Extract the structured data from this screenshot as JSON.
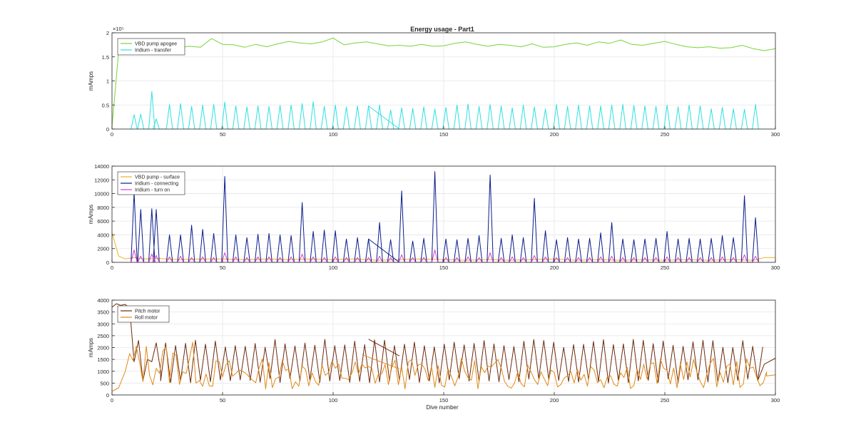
{
  "figure": {
    "title": "Energy usage - Part1",
    "xlabel": "Dive number"
  },
  "chart_data": [
    {
      "type": "line",
      "title": "Energy usage - Part1",
      "xlabel": "",
      "ylabel": "mAmps",
      "xlim": [
        0,
        300
      ],
      "ylim": [
        0,
        200000
      ],
      "x_ticks": [
        0,
        50,
        100,
        150,
        200,
        250,
        300
      ],
      "y_ticks": [
        0,
        50000,
        100000,
        150000,
        200000
      ],
      "y_tick_labels": [
        "0",
        "0.5",
        "1",
        "1.5",
        "2"
      ],
      "y_exponent_label": "×10⁵",
      "grid": true,
      "legend": "top-left",
      "series": [
        {
          "name": "VBD pump apogee",
          "color": "#77D43A",
          "x": [
            0,
            3,
            6,
            10,
            15,
            20,
            25,
            30,
            35,
            40,
            45,
            50,
            55,
            60,
            65,
            70,
            75,
            80,
            85,
            90,
            95,
            100,
            105,
            110,
            115,
            120,
            125,
            130,
            135,
            140,
            145,
            150,
            155,
            160,
            165,
            170,
            175,
            180,
            185,
            190,
            195,
            200,
            205,
            210,
            215,
            220,
            225,
            230,
            235,
            240,
            245,
            250,
            255,
            260,
            265,
            270,
            275,
            280,
            285,
            290,
            295,
            300
          ],
          "y": [
            5000,
            160000,
            175000,
            172000,
            174000,
            178000,
            171000,
            169000,
            172000,
            170000,
            188000,
            176000,
            175000,
            170000,
            176000,
            171000,
            177000,
            182000,
            179000,
            177000,
            181000,
            189000,
            175000,
            179000,
            181000,
            177000,
            173000,
            174000,
            172000,
            176000,
            172000,
            173000,
            178000,
            181000,
            176000,
            172000,
            176000,
            174000,
            171000,
            177000,
            170000,
            171000,
            176000,
            179000,
            174000,
            181000,
            178000,
            185000,
            176000,
            174000,
            178000,
            182000,
            176000,
            171000,
            169000,
            171000,
            168000,
            169000,
            174000,
            167000,
            163000,
            167000
          ]
        },
        {
          "name": "Iridium - transfer",
          "color": "#2FE0E0",
          "spikes_x": [
            10,
            13,
            18,
            20,
            26,
            31,
            36,
            41,
            46,
            51,
            56,
            61,
            66,
            71,
            76,
            81,
            86,
            91,
            96,
            101,
            106,
            111,
            116,
            121,
            126,
            131,
            136,
            141,
            146,
            151,
            156,
            161,
            166,
            171,
            176,
            181,
            186,
            191,
            196,
            201,
            206,
            211,
            216,
            221,
            226,
            231,
            236,
            241,
            246,
            251,
            256,
            261,
            266,
            271,
            276,
            281,
            286,
            291
          ],
          "spikes_y": [
            30000,
            31000,
            78000,
            21000,
            51000,
            53000,
            47000,
            50000,
            51000,
            56000,
            48000,
            46000,
            48000,
            47000,
            49000,
            50000,
            53000,
            57000,
            47000,
            50000,
            46000,
            48000,
            48000,
            50000,
            40000,
            44000,
            43000,
            46000,
            42000,
            45000,
            50000,
            52000,
            47000,
            51000,
            48000,
            44000,
            50000,
            46000,
            42000,
            51000,
            47000,
            50000,
            48000,
            48000,
            50000,
            51000,
            49000,
            48000,
            47000,
            50000,
            46000,
            50000,
            48000,
            42000,
            45000,
            42000,
            41000,
            51000
          ],
          "anomaly": [
            [
              116,
              48000
            ],
            [
              130,
              0
            ]
          ]
        }
      ]
    },
    {
      "type": "line",
      "title": "",
      "xlabel": "",
      "ylabel": "mAmps",
      "xlim": [
        0,
        300
      ],
      "ylim": [
        0,
        14000
      ],
      "x_ticks": [
        0,
        50,
        100,
        150,
        200,
        250,
        300
      ],
      "y_ticks": [
        0,
        2000,
        4000,
        6000,
        8000,
        10000,
        12000,
        14000
      ],
      "y_tick_labels": [
        "0",
        "2000",
        "4000",
        "6000",
        "8000",
        "10000",
        "12000",
        "14000"
      ],
      "grid": true,
      "legend": "top-left",
      "series": [
        {
          "name": "VBD pump - surface",
          "color": "#EDB120",
          "x": [
            0,
            3,
            6,
            10,
            15,
            20,
            25,
            30,
            40,
            50,
            60,
            70,
            80,
            90,
            100,
            110,
            120,
            130,
            140,
            150,
            160,
            170,
            180,
            190,
            200,
            210,
            220,
            230,
            240,
            250,
            260,
            270,
            280,
            290,
            295,
            300
          ],
          "y": [
            4300,
            900,
            500,
            700,
            500,
            600,
            500,
            400,
            500,
            500,
            400,
            500,
            400,
            500,
            400,
            500,
            300,
            400,
            500,
            400,
            300,
            400,
            300,
            400,
            500,
            300,
            400,
            300,
            400,
            300,
            400,
            300,
            400,
            300,
            700,
            700
          ]
        },
        {
          "name": "Iridium - connecting",
          "color": "#0B1C8C",
          "spikes_x": [
            10,
            13,
            18,
            20,
            26,
            31,
            36,
            41,
            46,
            51,
            56,
            61,
            66,
            71,
            76,
            81,
            86,
            91,
            96,
            101,
            106,
            111,
            116,
            121,
            126,
            131,
            136,
            141,
            146,
            151,
            156,
            161,
            166,
            171,
            176,
            181,
            186,
            191,
            196,
            201,
            206,
            211,
            216,
            221,
            226,
            231,
            236,
            241,
            246,
            251,
            256,
            261,
            266,
            271,
            276,
            281,
            286,
            291
          ],
          "spikes_y": [
            10200,
            7700,
            7800,
            7700,
            4000,
            4000,
            5400,
            4800,
            4200,
            12500,
            4000,
            3600,
            4100,
            4200,
            4000,
            3900,
            8700,
            4500,
            4700,
            4600,
            3400,
            3600,
            3400,
            5800,
            3300,
            10400,
            3100,
            3500,
            13200,
            3400,
            3300,
            3500,
            3900,
            12700,
            3500,
            4000,
            3600,
            9300,
            4600,
            3300,
            3600,
            3400,
            3500,
            4300,
            5800,
            3400,
            3300,
            3400,
            3500,
            4500,
            3400,
            3500,
            3400,
            3500,
            3900,
            3600,
            9700,
            6500
          ],
          "anomaly": [
            [
              116,
              3400
            ],
            [
              130,
              0
            ]
          ]
        },
        {
          "name": "Iridium - turn on",
          "color": "#D63CD6",
          "spikes_x": [
            10,
            13,
            18,
            20,
            26,
            31,
            36,
            41,
            46,
            51,
            56,
            61,
            66,
            71,
            76,
            81,
            86,
            91,
            96,
            101,
            106,
            111,
            116,
            121,
            126,
            131,
            136,
            141,
            146,
            151,
            156,
            161,
            166,
            171,
            176,
            181,
            186,
            191,
            196,
            201,
            206,
            211,
            216,
            221,
            226,
            231,
            236,
            241,
            246,
            251,
            256,
            261,
            266,
            271,
            276,
            281,
            286,
            291
          ],
          "spikes_y": [
            1800,
            900,
            1200,
            1000,
            800,
            900,
            700,
            800,
            700,
            1400,
            800,
            700,
            800,
            800,
            700,
            800,
            1200,
            800,
            700,
            800,
            700,
            700,
            700,
            900,
            700,
            1100,
            700,
            700,
            1800,
            700,
            700,
            800,
            700,
            1400,
            700,
            800,
            700,
            1000,
            800,
            700,
            700,
            700,
            700,
            800,
            900,
            700,
            700,
            700,
            700,
            800,
            700,
            700,
            700,
            700,
            800,
            700,
            1100,
            900
          ]
        }
      ]
    },
    {
      "type": "line",
      "title": "",
      "xlabel": "Dive number",
      "ylabel": "mAmps",
      "xlim": [
        0,
        300
      ],
      "ylim": [
        0,
        4000
      ],
      "x_ticks": [
        0,
        50,
        100,
        150,
        200,
        250,
        300
      ],
      "y_ticks": [
        0,
        500,
        1000,
        1500,
        2000,
        2500,
        3000,
        3500,
        4000
      ],
      "y_tick_labels": [
        "0",
        "500",
        "1000",
        "1500",
        "2000",
        "2500",
        "3000",
        "3500",
        "4000"
      ],
      "grid": true,
      "legend": "top-left",
      "series": [
        {
          "name": "Pitch motor",
          "color": "#6E2A0E",
          "x": [
            0,
            2,
            4,
            6,
            8,
            10,
            12,
            14,
            16,
            18,
            20,
            22
          ],
          "y": [
            3700,
            3850,
            3780,
            3820,
            3650,
            1400,
            2300,
            600,
            1500,
            1400,
            2200,
            1000
          ],
          "oscillation": {
            "start": 22,
            "end": 292,
            "period": 4.5,
            "high": 2300,
            "low": 500
          },
          "tail_x": [
            292,
            295,
            300
          ],
          "tail_y": [
            600,
            1300,
            1550
          ],
          "anomaly": [
            [
              116,
              2350
            ],
            [
              130,
              1650
            ]
          ]
        },
        {
          "name": "Roll motor",
          "color": "#E08A16",
          "noise": {
            "start": 0,
            "end": 296,
            "step": 1.5,
            "base": 900,
            "amplitude": 650
          },
          "tail_x": [
            296,
            300
          ],
          "tail_y": [
            800,
            850
          ],
          "anomaly": [
            [
              113,
              1700
            ],
            [
              130,
              1100
            ]
          ]
        }
      ]
    }
  ]
}
